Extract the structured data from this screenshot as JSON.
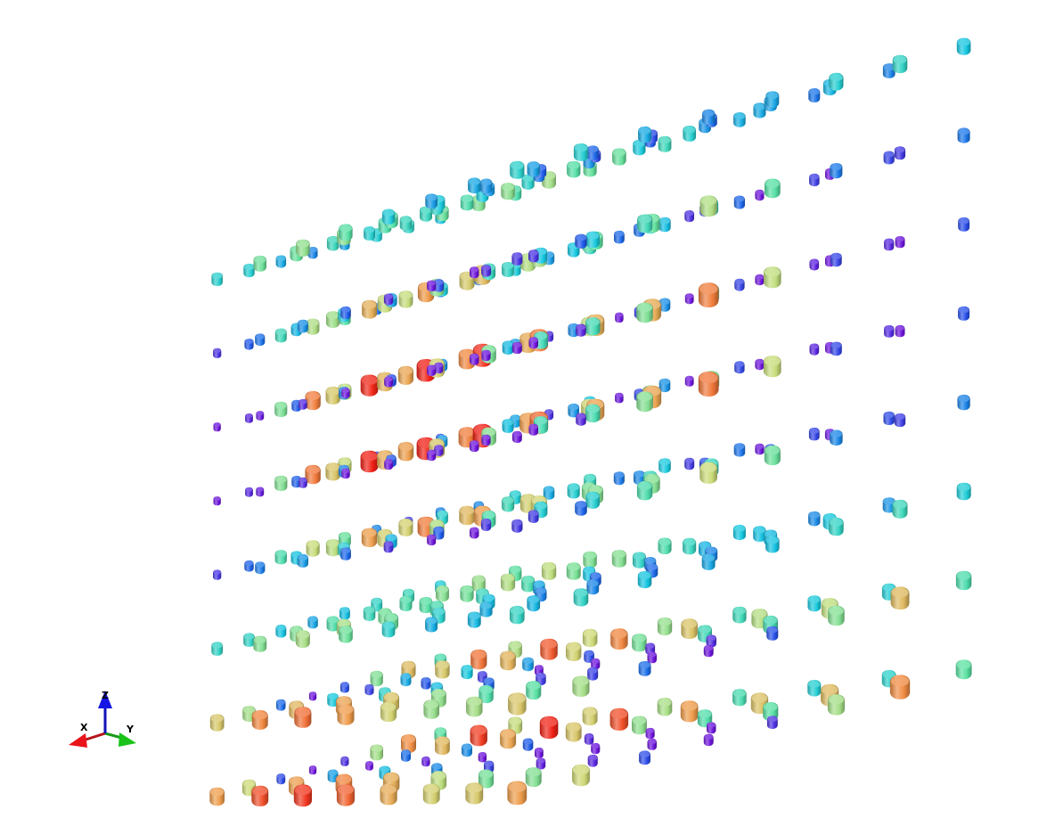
{
  "scene": {
    "background": "#ffffff",
    "glyph_shape": "cylinder",
    "colormap": "rainbow",
    "grid_size": [
      8,
      8,
      8
    ]
  },
  "axes": {
    "x_label": "X",
    "y_label": "Y",
    "z_label": "Z",
    "x_color": "#e8141a",
    "y_color": "#19c319",
    "z_color": "#1515e6"
  }
}
